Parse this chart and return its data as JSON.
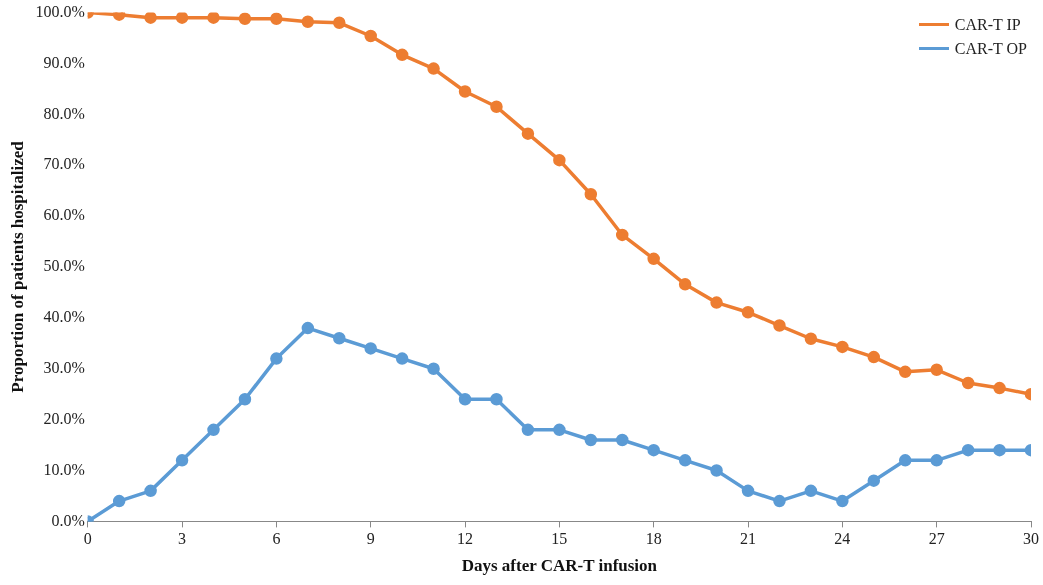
{
  "chart_data": {
    "type": "line",
    "xlabel": "Days after CAR-T infusion",
    "ylabel": "Proportion of patients hospitalized",
    "x": [
      0,
      1,
      2,
      3,
      4,
      5,
      6,
      7,
      8,
      9,
      10,
      11,
      12,
      13,
      14,
      15,
      16,
      17,
      18,
      19,
      20,
      21,
      22,
      23,
      24,
      25,
      26,
      27,
      28,
      29,
      30
    ],
    "series": [
      {
        "name": "CAR-T IP",
        "color": "#ed7d31",
        "values": [
          100,
          99.6,
          99,
          99,
          99,
          98.8,
          98.8,
          98.2,
          98,
          95.4,
          91.7,
          89,
          84.5,
          81.5,
          76.2,
          71,
          64.3,
          56.3,
          51.6,
          46.6,
          43,
          41.1,
          38.5,
          35.9,
          34.3,
          32.3,
          29.4,
          29.8,
          27.2,
          26.2,
          25
        ]
      },
      {
        "name": "CAR-T OP",
        "color": "#5b9bd5",
        "values": [
          0,
          4,
          6,
          12,
          18,
          24,
          32,
          38,
          36,
          34,
          32,
          30,
          24,
          24,
          18,
          18,
          16,
          16,
          14,
          12,
          10,
          6,
          4,
          6,
          4,
          8,
          12,
          12,
          14,
          14,
          14
        ]
      }
    ],
    "xlim": [
      0,
      30
    ],
    "xticks": [
      0,
      3,
      6,
      9,
      12,
      15,
      18,
      21,
      24,
      27,
      30
    ],
    "ylim": [
      0,
      100
    ],
    "yticks": [
      {
        "value": 0,
        "label": "0.0%"
      },
      {
        "value": 10,
        "label": "10.0%"
      },
      {
        "value": 20,
        "label": "20.0%"
      },
      {
        "value": 30,
        "label": "30.0%"
      },
      {
        "value": 40,
        "label": "40.0%"
      },
      {
        "value": 50,
        "label": "50.0%"
      },
      {
        "value": 60,
        "label": "60.0%"
      },
      {
        "value": 70,
        "label": "70.0%"
      },
      {
        "value": 80,
        "label": "80.0%"
      },
      {
        "value": 90,
        "label": "90.0%"
      },
      {
        "value": 100,
        "label": "100.0%"
      }
    ],
    "grid": false,
    "legend": "top right",
    "marker": "circle",
    "line_style": "solid"
  }
}
